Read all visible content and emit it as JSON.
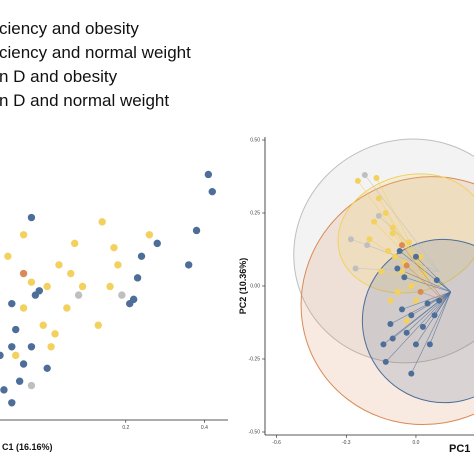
{
  "colors": {
    "deficiency_obesity": "#F2D15F",
    "deficiency_normal": "#4D6E99",
    "normal_obesity": "#D98A55",
    "normal_normal": "#BFBFBF"
  },
  "legend": [
    {
      "label": "ciency and obesity",
      "color_key": "deficiency_obesity"
    },
    {
      "label": "ciency and normal weight",
      "color_key": "deficiency_normal"
    },
    {
      "label": "n D and obesity",
      "color_key": "normal_obesity"
    },
    {
      "label": "n D and normal weight",
      "color_key": "normal_normal"
    }
  ],
  "chart_data": [
    {
      "type": "scatter",
      "xlabel": "C1 (16.16%)",
      "ylabel": "",
      "xlim": [
        -0.12,
        0.46
      ],
      "ylim": [
        -0.35,
        0.3
      ],
      "x_ticks": [
        {
          "value": 0.2,
          "label": "0.2"
        },
        {
          "value": 0.4,
          "label": "0.4"
        }
      ],
      "grid": false,
      "series": [
        {
          "color_key": "deficiency_normal",
          "points": [
            [
              0.41,
              0.22
            ],
            [
              0.42,
              0.18
            ],
            [
              -0.04,
              0.12
            ],
            [
              0.38,
              0.09
            ],
            [
              0.28,
              0.06
            ],
            [
              0.36,
              0.01
            ],
            [
              0.24,
              0.03
            ],
            [
              0.23,
              -0.02
            ],
            [
              -0.02,
              -0.05
            ],
            [
              -0.09,
              -0.08
            ],
            [
              -0.08,
              -0.14
            ],
            [
              -0.04,
              -0.18
            ],
            [
              0.22,
              -0.07
            ],
            [
              0.21,
              -0.08
            ],
            [
              -0.09,
              -0.18
            ],
            [
              -0.06,
              -0.22
            ],
            [
              -0.12,
              -0.2
            ],
            [
              -0.09,
              -0.31
            ],
            [
              -0.07,
              -0.26
            ],
            [
              0.0,
              -0.23
            ],
            [
              -0.03,
              -0.06
            ],
            [
              -0.11,
              -0.28
            ]
          ]
        },
        {
          "color_key": "deficiency_obesity",
          "points": [
            [
              0.26,
              0.08
            ],
            [
              0.14,
              0.11
            ],
            [
              -0.06,
              0.08
            ],
            [
              0.07,
              0.06
            ],
            [
              0.18,
              0.01
            ],
            [
              -0.04,
              -0.03
            ],
            [
              0.0,
              -0.04
            ],
            [
              0.03,
              0.01
            ],
            [
              0.06,
              -0.01
            ],
            [
              0.16,
              -0.04
            ],
            [
              0.09,
              -0.04
            ],
            [
              -0.06,
              -0.09
            ],
            [
              0.05,
              -0.09
            ],
            [
              -0.01,
              -0.13
            ],
            [
              0.01,
              -0.18
            ],
            [
              0.13,
              -0.13
            ],
            [
              0.17,
              0.05
            ],
            [
              -0.1,
              0.03
            ],
            [
              0.02,
              -0.15
            ],
            [
              -0.08,
              -0.2
            ]
          ]
        },
        {
          "color_key": "normal_obesity",
          "points": [
            [
              -0.06,
              -0.01
            ]
          ]
        },
        {
          "color_key": "normal_normal",
          "points": [
            [
              0.19,
              -0.06
            ],
            [
              -0.04,
              -0.27
            ],
            [
              0.08,
              -0.06
            ]
          ]
        }
      ]
    },
    {
      "type": "scatter",
      "xlabel": "PC1 (",
      "ylabel": "PC2 (10.36%)",
      "xlim": [
        -0.65,
        0.25
      ],
      "ylim": [
        -0.5,
        0.5
      ],
      "x_ticks": [
        {
          "value": -0.6,
          "label": "-0.6"
        },
        {
          "value": -0.3,
          "label": "-0.3"
        },
        {
          "value": 0.0,
          "label": "0.0"
        }
      ],
      "y_ticks": [
        {
          "value": 0.5,
          "label": "0.50"
        },
        {
          "value": 0.25,
          "label": "0.25"
        },
        {
          "value": 0.0,
          "label": "0.00"
        },
        {
          "value": -0.25,
          "label": "-0.25"
        },
        {
          "value": -0.5,
          "label": "-0.50"
        }
      ],
      "grid": false,
      "centroids": {
        "deficiency_obesity": [
          0.05,
          0.03
        ],
        "deficiency_normal": [
          0.15,
          -0.02
        ],
        "normal_obesity": [
          0.12,
          -0.05
        ],
        "normal_normal": [
          0.1,
          0.05
        ]
      },
      "ellipses": [
        {
          "color_key": "normal_normal",
          "center": [
            -0.03,
            0.12
          ],
          "rx": 0.5,
          "ry": 0.38,
          "angle": -25
        },
        {
          "color_key": "normal_obesity",
          "center": [
            0.05,
            -0.05
          ],
          "rx": 0.55,
          "ry": 0.42,
          "angle": -30
        },
        {
          "color_key": "deficiency_obesity",
          "center": [
            -0.02,
            0.18
          ],
          "rx": 0.32,
          "ry": 0.2,
          "angle": -15
        },
        {
          "color_key": "deficiency_normal",
          "center": [
            0.12,
            -0.12
          ],
          "rx": 0.35,
          "ry": 0.28,
          "angle": -35
        }
      ],
      "series": [
        {
          "color_key": "deficiency_obesity",
          "points": [
            [
              -0.25,
              0.36
            ],
            [
              -0.17,
              0.37
            ],
            [
              -0.16,
              0.3
            ],
            [
              -0.13,
              0.25
            ],
            [
              -0.18,
              0.22
            ],
            [
              -0.1,
              0.2
            ],
            [
              -0.09,
              0.1
            ],
            [
              -0.12,
              0.12
            ],
            [
              -0.15,
              0.05
            ],
            [
              -0.05,
              0.08
            ],
            [
              -0.08,
              -0.02
            ],
            [
              -0.03,
              0.15
            ],
            [
              0.0,
              -0.05
            ],
            [
              -0.06,
              0.05
            ],
            [
              -0.02,
              0.0
            ],
            [
              -0.1,
              0.18
            ],
            [
              -0.2,
              0.16
            ],
            [
              0.02,
              0.1
            ],
            [
              -0.11,
              -0.05
            ],
            [
              -0.04,
              -0.12
            ]
          ]
        },
        {
          "color_key": "deficiency_normal",
          "points": [
            [
              -0.05,
              0.03
            ],
            [
              -0.06,
              -0.08
            ],
            [
              0.0,
              0.1
            ],
            [
              -0.02,
              -0.1
            ],
            [
              -0.11,
              -0.13
            ],
            [
              -0.13,
              -0.26
            ],
            [
              -0.1,
              -0.18
            ],
            [
              0.0,
              -0.2
            ],
            [
              -0.02,
              -0.3
            ],
            [
              0.05,
              -0.06
            ],
            [
              -0.07,
              0.12
            ],
            [
              0.08,
              -0.1
            ],
            [
              -0.04,
              -0.16
            ],
            [
              0.09,
              0.02
            ],
            [
              -0.08,
              0.06
            ],
            [
              0.03,
              -0.14
            ],
            [
              0.06,
              -0.2
            ],
            [
              0.1,
              -0.05
            ],
            [
              -0.14,
              -0.2
            ]
          ]
        },
        {
          "color_key": "normal_obesity",
          "points": [
            [
              -0.06,
              0.14
            ],
            [
              -0.04,
              0.07
            ],
            [
              0.02,
              -0.02
            ]
          ]
        },
        {
          "color_key": "normal_normal",
          "points": [
            [
              -0.28,
              0.16
            ],
            [
              -0.21,
              0.14
            ],
            [
              -0.16,
              0.24
            ],
            [
              -0.26,
              0.06
            ],
            [
              -0.22,
              0.38
            ]
          ]
        }
      ]
    }
  ]
}
